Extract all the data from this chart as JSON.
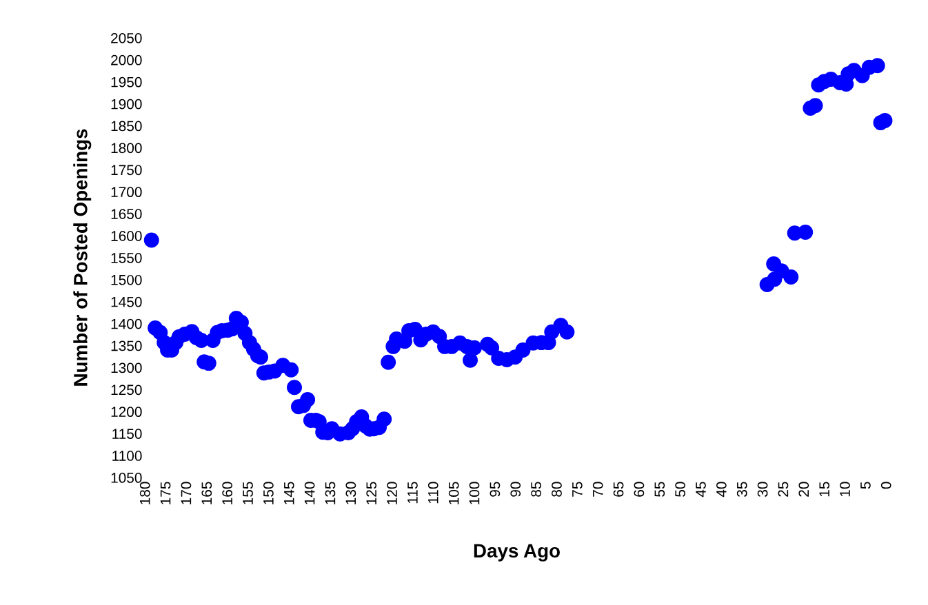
{
  "chart_data": {
    "type": "scatter",
    "xlabel": "Days Ago",
    "ylabel": "Number of Posted Openings",
    "x": [
      178.7,
      177.8,
      176.6,
      175.6,
      174.8,
      173.8,
      172.8,
      172.0,
      170.6,
      168.9,
      167.8,
      166.6,
      165.9,
      164.8,
      163.8,
      162.7,
      161.6,
      160.2,
      159.1,
      158.1,
      156.9,
      156.0,
      154.9,
      153.9,
      152.9,
      152.2,
      151.4,
      150.2,
      148.8,
      146.8,
      144.8,
      144.0,
      143.0,
      141.8,
      140.8,
      140.0,
      138.8,
      138.0,
      137.1,
      135.9,
      134.9,
      132.9,
      130.9,
      129.9,
      128.9,
      127.7,
      126.7,
      125.7,
      124.7,
      123.4,
      122.2,
      121.2,
      120.0,
      119.2,
      117.2,
      116.2,
      114.7,
      113.3,
      112.0,
      110.3,
      108.8,
      107.5,
      105.8,
      103.8,
      102.1,
      101.3,
      100.3,
      97.1,
      96.1,
      94.4,
      92.4,
      90.4,
      88.5,
      86.0,
      84.0,
      82.3,
      81.5,
      79.3,
      77.8,
      29.2,
      27.4,
      27.6,
      25.7,
      23.4,
      22.5,
      19.9,
      18.7,
      17.5,
      16.7,
      15.3,
      13.7,
      11.5,
      10.0,
      9.5,
      8.1,
      6.1,
      4.4,
      2.4,
      1.6,
      0.6
    ],
    "series": [
      {
        "color": "#0000ff",
        "values": [
          1590,
          1390,
          1380,
          1357,
          1340,
          1340,
          1357,
          1370,
          1376,
          1382,
          1368,
          1362,
          1313,
          1310,
          1362,
          1380,
          1384,
          1385,
          1388,
          1412,
          1403,
          1378,
          1357,
          1342,
          1327,
          1324,
          1288,
          1290,
          1292,
          1305,
          1295,
          1255,
          1211,
          1214,
          1227,
          1180,
          1180,
          1177,
          1153,
          1152,
          1161,
          1149,
          1152,
          1161,
          1177,
          1188,
          1167,
          1160,
          1161,
          1164,
          1183,
          1312,
          1348,
          1365,
          1360,
          1384,
          1387,
          1363,
          1376,
          1381,
          1371,
          1348,
          1348,
          1356,
          1348,
          1317,
          1345,
          1353,
          1345,
          1321,
          1318,
          1324,
          1340,
          1356,
          1357,
          1357,
          1381,
          1396,
          1381,
          1489,
          1501,
          1536,
          1520,
          1506,
          1606,
          1608,
          1890,
          1896,
          1943,
          1951,
          1956,
          1948,
          1945,
          1968,
          1976,
          1964,
          1983,
          1987,
          1857,
          1862
        ]
      }
    ],
    "xlim": [
      180,
      0
    ],
    "xticks": [
      180,
      175,
      170,
      165,
      160,
      155,
      150,
      145,
      140,
      135,
      130,
      125,
      120,
      115,
      110,
      105,
      100,
      95,
      90,
      85,
      80,
      75,
      70,
      65,
      60,
      55,
      50,
      45,
      40,
      35,
      30,
      25,
      20,
      15,
      10,
      5,
      0
    ],
    "ylim": [
      1050,
      2050
    ],
    "yticks": [
      1050,
      1100,
      1150,
      1200,
      1250,
      1300,
      1350,
      1400,
      1450,
      1500,
      1550,
      1600,
      1650,
      1700,
      1750,
      1800,
      1850,
      1900,
      1950,
      2000,
      2050
    ],
    "marker": "circle",
    "grid": false,
    "legend": false
  }
}
